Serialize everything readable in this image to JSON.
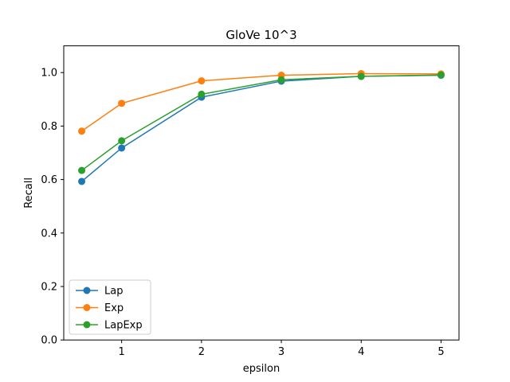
{
  "chart_data": {
    "type": "line",
    "title": "GloVe 10^3",
    "xlabel": "epsilon",
    "ylabel": "Recall",
    "x": [
      0.5,
      1,
      2,
      3,
      4,
      5
    ],
    "xlim": [
      0.275,
      5.225
    ],
    "ylim": [
      0.0,
      1.1
    ],
    "xticks": [
      "1",
      "2",
      "3",
      "4",
      "5"
    ],
    "yticks": [
      "0.0",
      "0.2",
      "0.4",
      "0.6",
      "0.8",
      "1.0"
    ],
    "grid": false,
    "legend_position": "lower-left",
    "series": [
      {
        "name": "Lap",
        "color": "#1f77b4",
        "values": [
          0.593,
          0.718,
          0.908,
          0.968,
          0.986,
          0.99
        ]
      },
      {
        "name": "Exp",
        "color": "#ff7f0e",
        "values": [
          0.781,
          0.885,
          0.969,
          0.99,
          0.996,
          0.995
        ]
      },
      {
        "name": "LapExp",
        "color": "#2ca02c",
        "values": [
          0.634,
          0.745,
          0.919,
          0.973,
          0.986,
          0.991
        ]
      }
    ]
  }
}
